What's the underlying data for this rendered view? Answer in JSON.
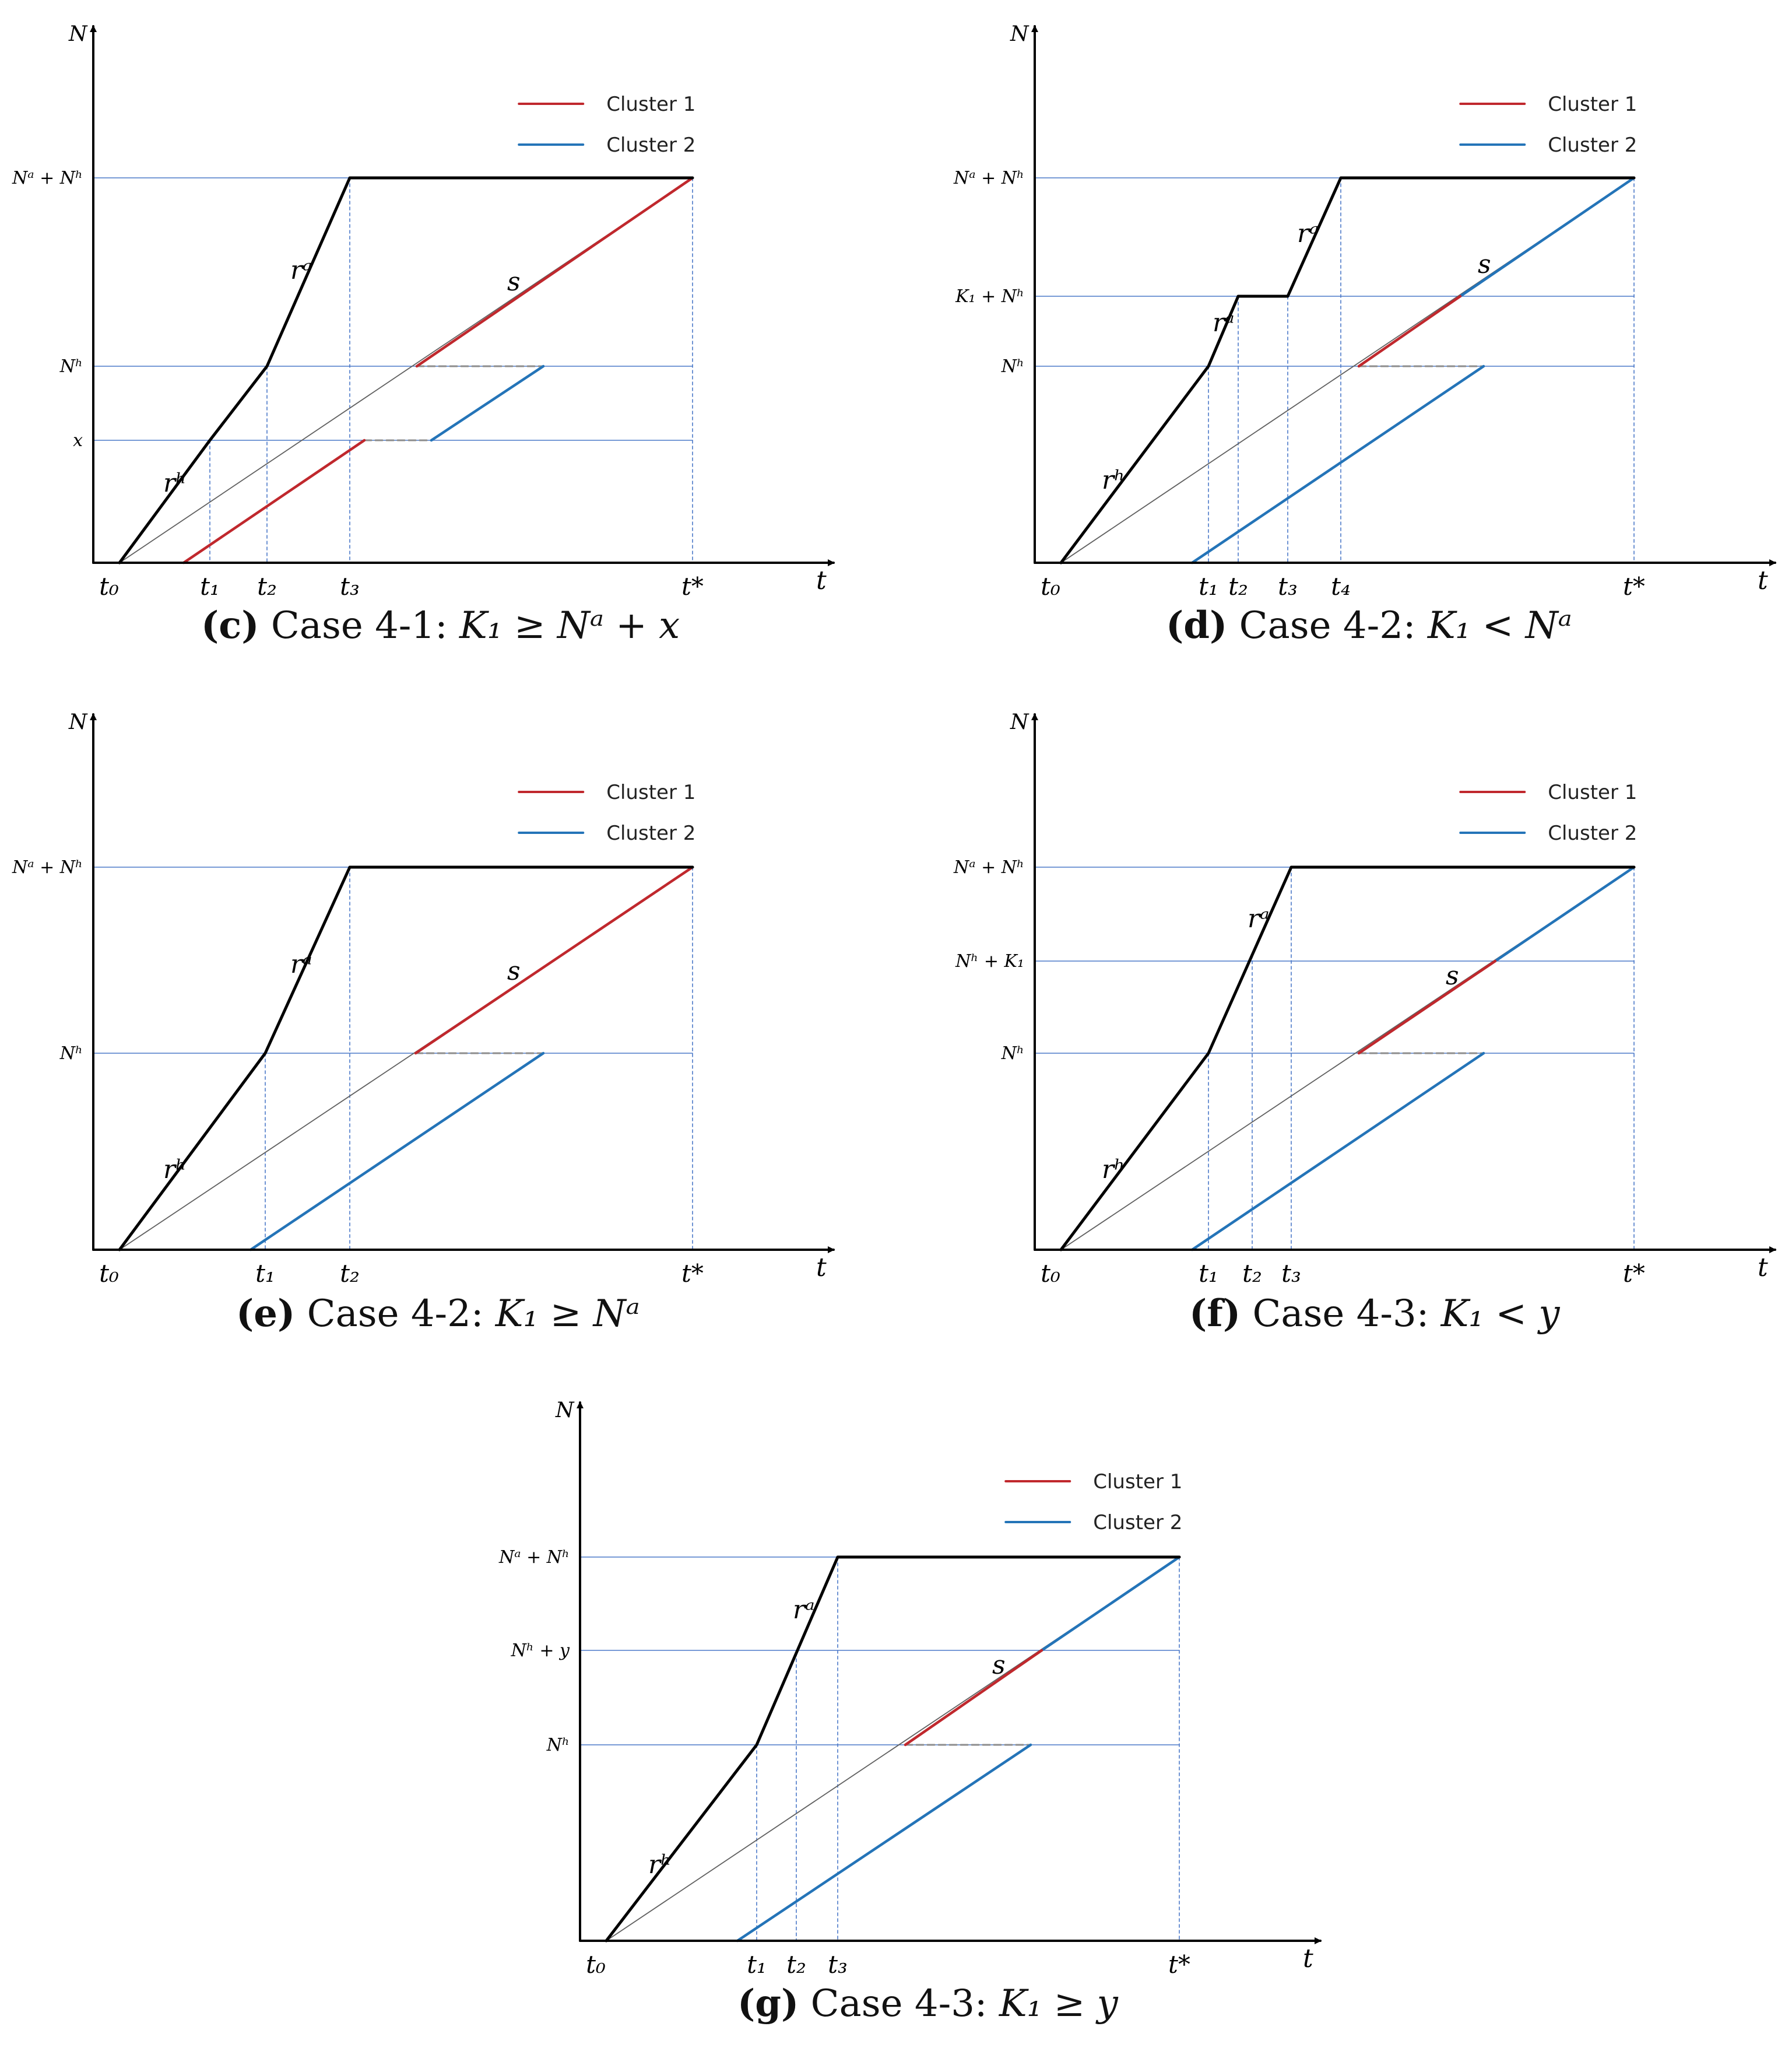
{
  "legend": {
    "cluster1": "Cluster 1",
    "cluster2": "Cluster 2",
    "cluster1_color": "#c0282d",
    "cluster2_color": "#2474b8"
  },
  "colors": {
    "curve": "#000000",
    "guide": "#4a78c8",
    "dashed": "#8c8c8c",
    "thin": "#606060"
  },
  "panels": [
    {
      "id": "c",
      "caption_letter": "c",
      "caption_text": "Case 4-1:",
      "caption_math": "K₁ ≥ Nᵃ + x",
      "y_axis_label": "N",
      "x_axis_label": "t",
      "y_ticks": [
        "Nᵃ + Nʰ",
        "Nʰ",
        "x"
      ],
      "x_ticks": [
        "t₀",
        "t₁",
        "t₂",
        "t₃",
        "t*"
      ],
      "curve_labels": [
        "rᵃ",
        "rʰ",
        "s"
      ]
    },
    {
      "id": "d",
      "caption_letter": "d",
      "caption_text": "Case 4-2:",
      "caption_math": "K₁ < Nᵃ",
      "y_axis_label": "N",
      "x_axis_label": "t",
      "y_ticks": [
        "Nᵃ + Nʰ",
        "K₁ + Nʰ",
        "Nʰ"
      ],
      "x_ticks": [
        "t₀",
        "t₁",
        "t₂",
        "t₃",
        "t₄",
        "t*"
      ],
      "curve_labels": [
        "rᵃ",
        "rᵃ",
        "rʰ",
        "s"
      ]
    },
    {
      "id": "e",
      "caption_letter": "e",
      "caption_text": "Case 4-2:",
      "caption_math": "K₁ ≥ Nᵃ",
      "y_axis_label": "N",
      "x_axis_label": "t",
      "y_ticks": [
        "Nᵃ + Nʰ",
        "Nʰ"
      ],
      "x_ticks": [
        "t₀",
        "t₁",
        "t₂",
        "t*"
      ],
      "curve_labels": [
        "rᵃ",
        "rʰ",
        "s"
      ]
    },
    {
      "id": "f",
      "caption_letter": "f",
      "caption_text": "Case 4-3:",
      "caption_math": "K₁ < y",
      "y_axis_label": "N",
      "x_axis_label": "t",
      "y_ticks": [
        "Nᵃ + Nʰ",
        "Nʰ + K₁",
        "Nʰ"
      ],
      "x_ticks": [
        "t₀",
        "t₁",
        "t₂",
        "t₃",
        "t*"
      ],
      "curve_labels": [
        "rᵃ",
        "rʰ",
        "s"
      ]
    },
    {
      "id": "g",
      "caption_letter": "g",
      "caption_text": "Case 4-3:",
      "caption_math": "K₁ ≥ y",
      "y_axis_label": "N",
      "x_axis_label": "t",
      "y_ticks": [
        "Nᵃ + Nʰ",
        "Nʰ + y",
        "Nʰ"
      ],
      "x_ticks": [
        "t₀",
        "t₁",
        "t₂",
        "t₃",
        "t*"
      ],
      "curve_labels": [
        "rᵃ",
        "rʰ",
        "s"
      ]
    }
  ]
}
